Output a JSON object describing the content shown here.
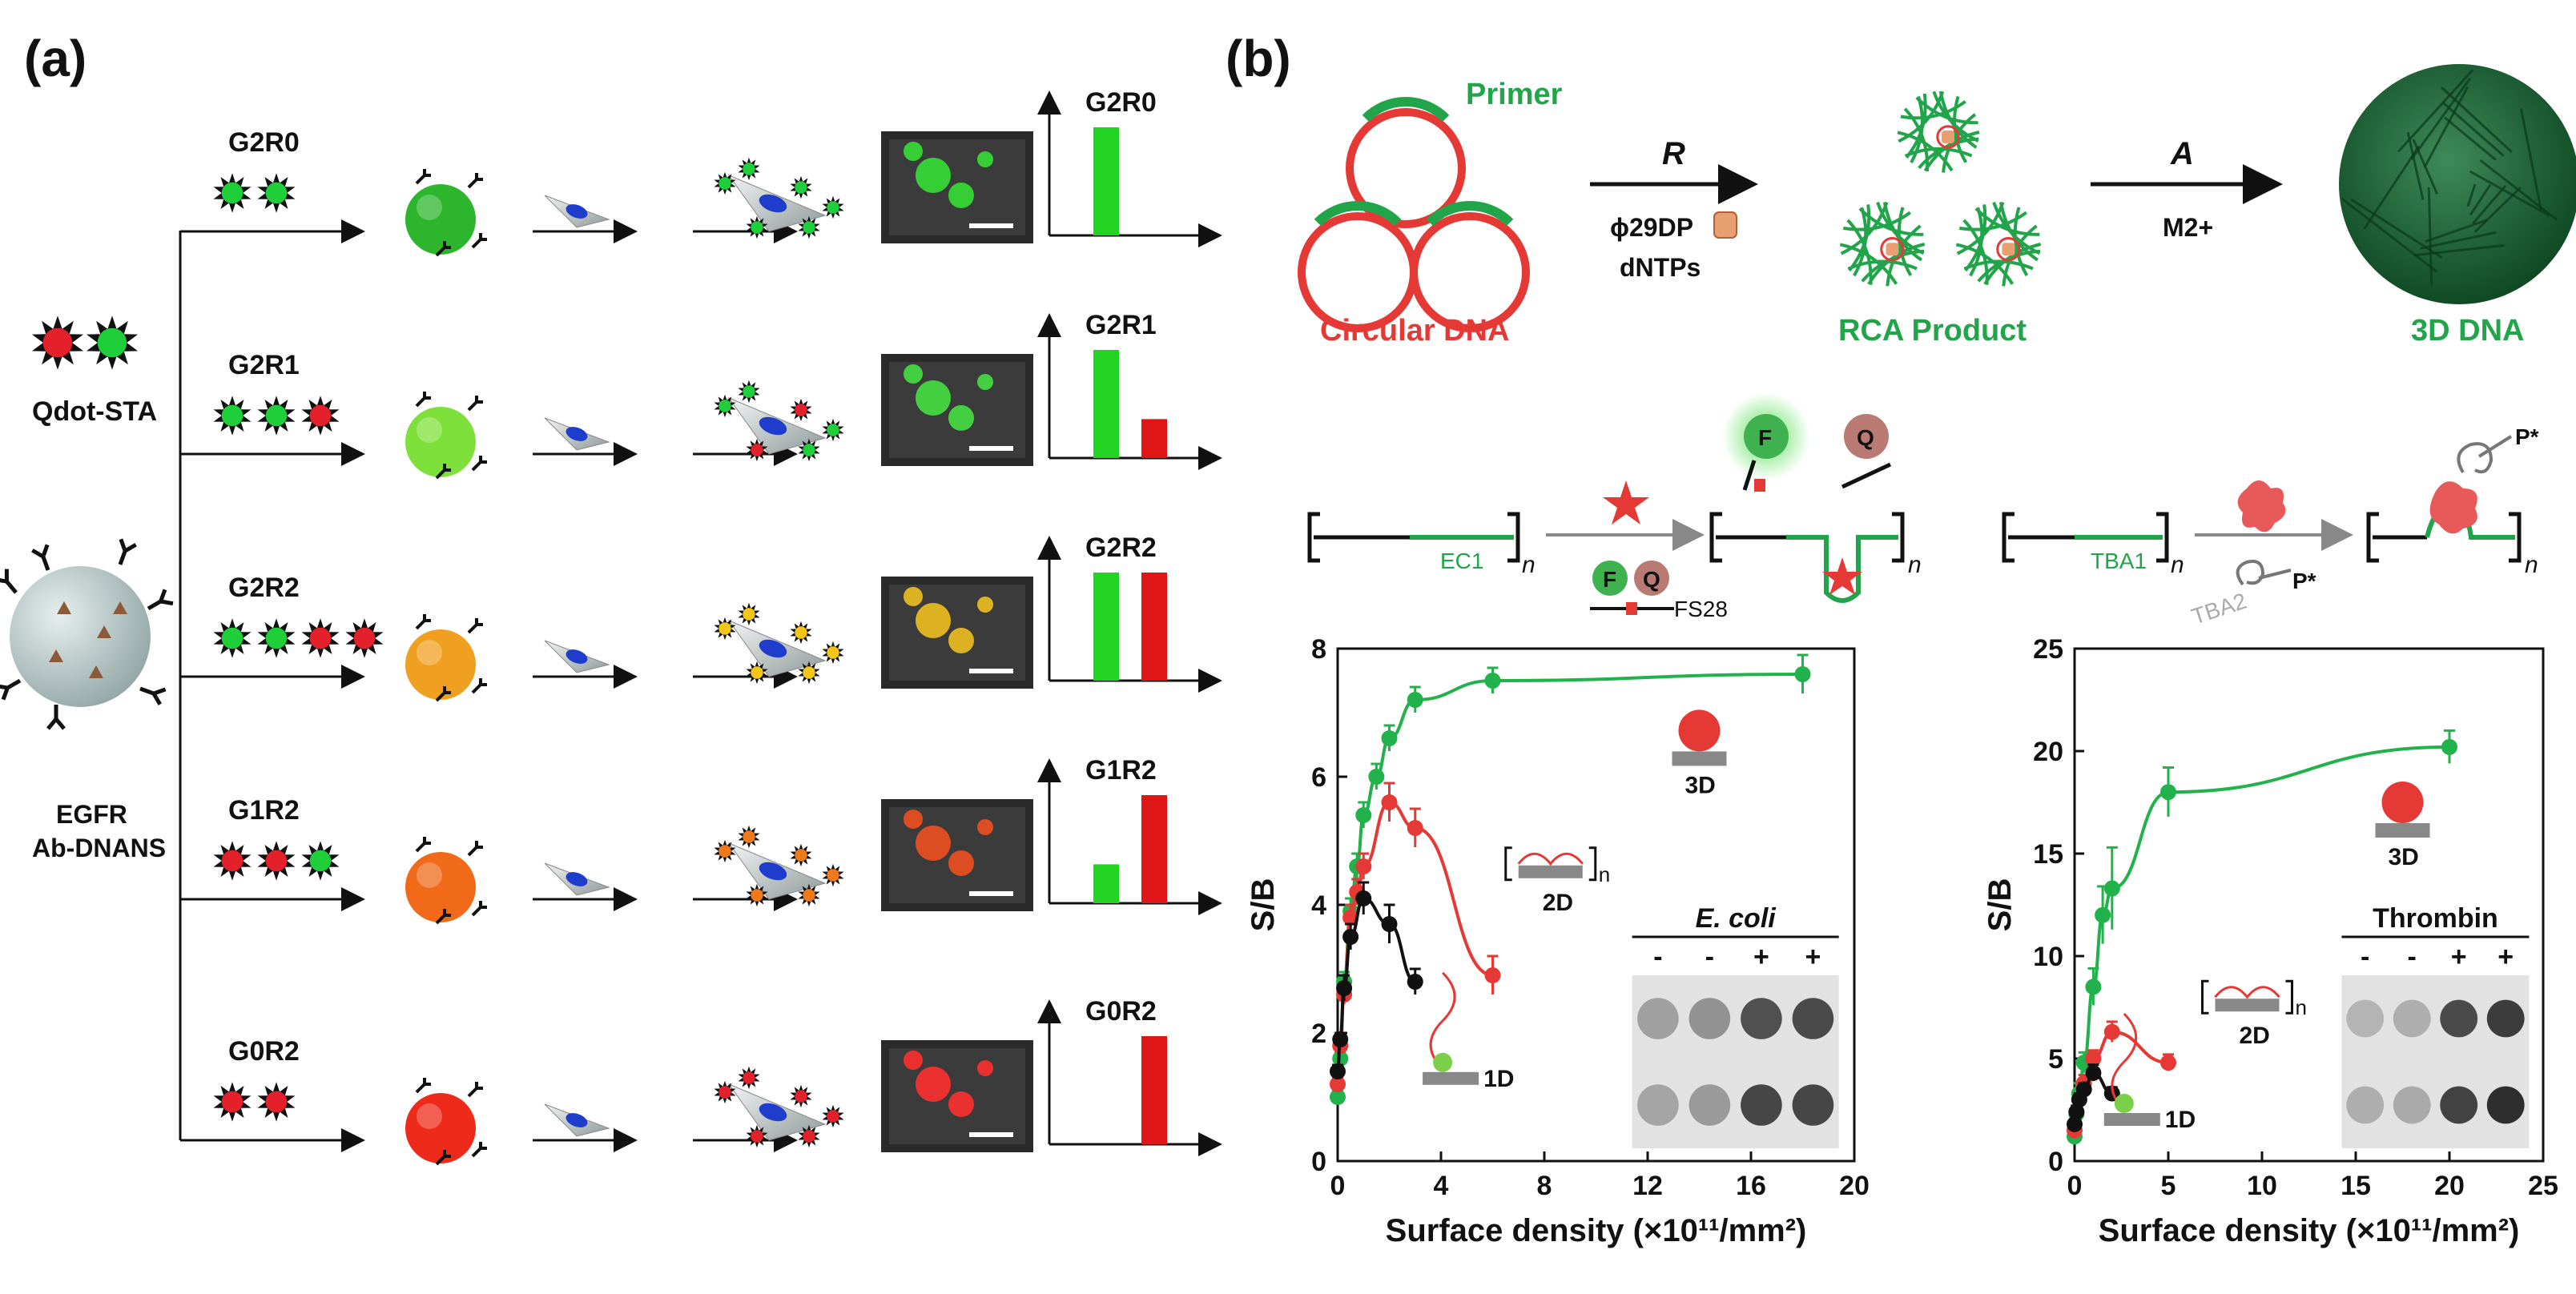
{
  "panel_a": {
    "label": "(a)",
    "qdot_label": "Qdot-STA",
    "nanostructure_label_1": "EGFR",
    "nanostructure_label_2": "Ab-DNANS",
    "rows": [
      {
        "name": "G2R0",
        "dots": [
          "green",
          "green"
        ],
        "sphere_color": "#2db52d",
        "bars": {
          "green": 1.0,
          "red": 0.0
        }
      },
      {
        "name": "G2R1",
        "dots": [
          "green",
          "green",
          "red"
        ],
        "sphere_color": "#7ee03a",
        "bars": {
          "green": 1.0,
          "red": 0.36
        }
      },
      {
        "name": "G2R2",
        "dots": [
          "green",
          "green",
          "red",
          "red"
        ],
        "sphere_color": "#f0a020",
        "bars": {
          "green": 1.0,
          "red": 1.0
        }
      },
      {
        "name": "G1R2",
        "dots": [
          "red",
          "red",
          "green"
        ],
        "sphere_color": "#f06a1a",
        "bars": {
          "green": 0.36,
          "red": 1.0
        }
      },
      {
        "name": "G0R2",
        "dots": [
          "red",
          "red"
        ],
        "sphere_color": "#ee2a1a",
        "bars": {
          "green": 0.0,
          "red": 1.0
        }
      }
    ],
    "colors": {
      "green": "#22d322",
      "red": "#e01515",
      "dot_green": "#1ecf3a",
      "dot_red": "#e4202a"
    }
  },
  "panel_b": {
    "label": "(b)",
    "primer_label": "Primer",
    "circular_dna_label": "Circular DNA",
    "step_r_label": "R",
    "phi29_label": "ϕ29DP",
    "dntps_label": "dNTPs",
    "rca_label": "RCA Product",
    "step_a_label": "A",
    "metal_label": "M2+",
    "dna3d_label": "3D DNA",
    "left_scheme": {
      "ec1_label": "EC1",
      "n_label": "n",
      "f_label": "F",
      "q_label": "Q",
      "fs28_label": "FS28"
    },
    "right_scheme": {
      "tba1_label": "TBA1",
      "tba2_label": "TBA2",
      "p_label": "P*",
      "n_label": "n"
    },
    "colors": {
      "green": "#22a54a",
      "red": "#e53935",
      "black": "#111111"
    }
  },
  "chart_data": [
    {
      "type": "line",
      "xlabel": "Surface density (×10¹¹/mm²)",
      "ylabel": "S/B",
      "xlim": [
        0,
        20
      ],
      "ylim": [
        0,
        8
      ],
      "xticks": [
        0,
        4,
        8,
        12,
        16,
        20
      ],
      "yticks": [
        0,
        2,
        4,
        6,
        8
      ],
      "series": [
        {
          "name": "3D",
          "color": "#22b24c",
          "x": [
            0,
            0.1,
            0.25,
            0.5,
            0.75,
            1,
            1.5,
            2,
            3,
            6,
            18
          ],
          "y": [
            1.0,
            1.6,
            2.8,
            3.9,
            4.6,
            5.4,
            6.0,
            6.6,
            7.2,
            7.5,
            7.6
          ],
          "err": [
            0.1,
            0.1,
            0.15,
            0.2,
            0.2,
            0.2,
            0.2,
            0.2,
            0.2,
            0.2,
            0.3
          ]
        },
        {
          "name": "2D",
          "color": "#e53935",
          "x": [
            0,
            0.1,
            0.25,
            0.5,
            0.75,
            1,
            2,
            3,
            6
          ],
          "y": [
            1.2,
            1.8,
            2.6,
            3.8,
            4.2,
            4.6,
            5.6,
            5.2,
            2.9
          ],
          "err": [
            0.1,
            0.1,
            0.15,
            0.2,
            0.2,
            0.2,
            0.3,
            0.3,
            0.3
          ]
        },
        {
          "name": "1D",
          "color": "#111111",
          "x": [
            0,
            0.1,
            0.25,
            0.5,
            1,
            2,
            3
          ],
          "y": [
            1.4,
            1.9,
            2.7,
            3.5,
            4.1,
            3.7,
            2.8
          ],
          "err": [
            0.1,
            0.1,
            0.2,
            0.2,
            0.25,
            0.3,
            0.2
          ]
        }
      ],
      "annotations": [
        "3D",
        "2D",
        "1D",
        "n"
      ],
      "inset": {
        "title": "E. coli",
        "signs": [
          "-",
          "-",
          "+",
          "+"
        ],
        "dot_rows": [
          [
            0.35,
            0.42,
            0.75,
            0.78
          ],
          [
            0.33,
            0.38,
            0.8,
            0.8
          ]
        ]
      }
    },
    {
      "type": "line",
      "xlabel": "Surface density (×10¹¹/mm²)",
      "ylabel": "S/B",
      "xlim": [
        0,
        25
      ],
      "ylim": [
        0,
        25
      ],
      "xticks": [
        0,
        5,
        10,
        15,
        20,
        25
      ],
      "yticks": [
        0,
        5,
        10,
        15,
        20,
        25
      ],
      "series": [
        {
          "name": "3D",
          "color": "#22b24c",
          "x": [
            0,
            0.1,
            0.25,
            0.5,
            1,
            1.5,
            2,
            5,
            20
          ],
          "y": [
            1.2,
            2.3,
            3.3,
            4.8,
            8.5,
            12.0,
            13.3,
            18.0,
            20.2
          ],
          "err": [
            0.3,
            0.4,
            0.5,
            0.5,
            0.9,
            1.4,
            2.0,
            1.2,
            0.8
          ]
        },
        {
          "name": "2D",
          "color": "#e53935",
          "x": [
            0,
            0.1,
            0.25,
            0.5,
            1,
            2,
            5
          ],
          "y": [
            1.5,
            2.4,
            3.0,
            3.8,
            5.0,
            6.3,
            4.8
          ],
          "err": [
            0.2,
            0.3,
            0.3,
            0.4,
            0.4,
            0.5,
            0.4
          ]
        },
        {
          "name": "1D",
          "color": "#111111",
          "x": [
            0,
            0.1,
            0.25,
            0.5,
            1,
            2
          ],
          "y": [
            1.8,
            2.4,
            3.0,
            3.5,
            4.3,
            3.3
          ],
          "err": [
            0.2,
            0.3,
            0.3,
            0.3,
            0.4,
            0.3
          ]
        }
      ],
      "annotations": [
        "3D",
        "2D",
        "1D",
        "n"
      ],
      "inset": {
        "title": "Thrombin",
        "signs": [
          "-",
          "-",
          "+",
          "+"
        ],
        "dot_rows": [
          [
            0.25,
            0.28,
            0.78,
            0.85
          ],
          [
            0.28,
            0.3,
            0.82,
            0.92
          ]
        ]
      }
    }
  ]
}
